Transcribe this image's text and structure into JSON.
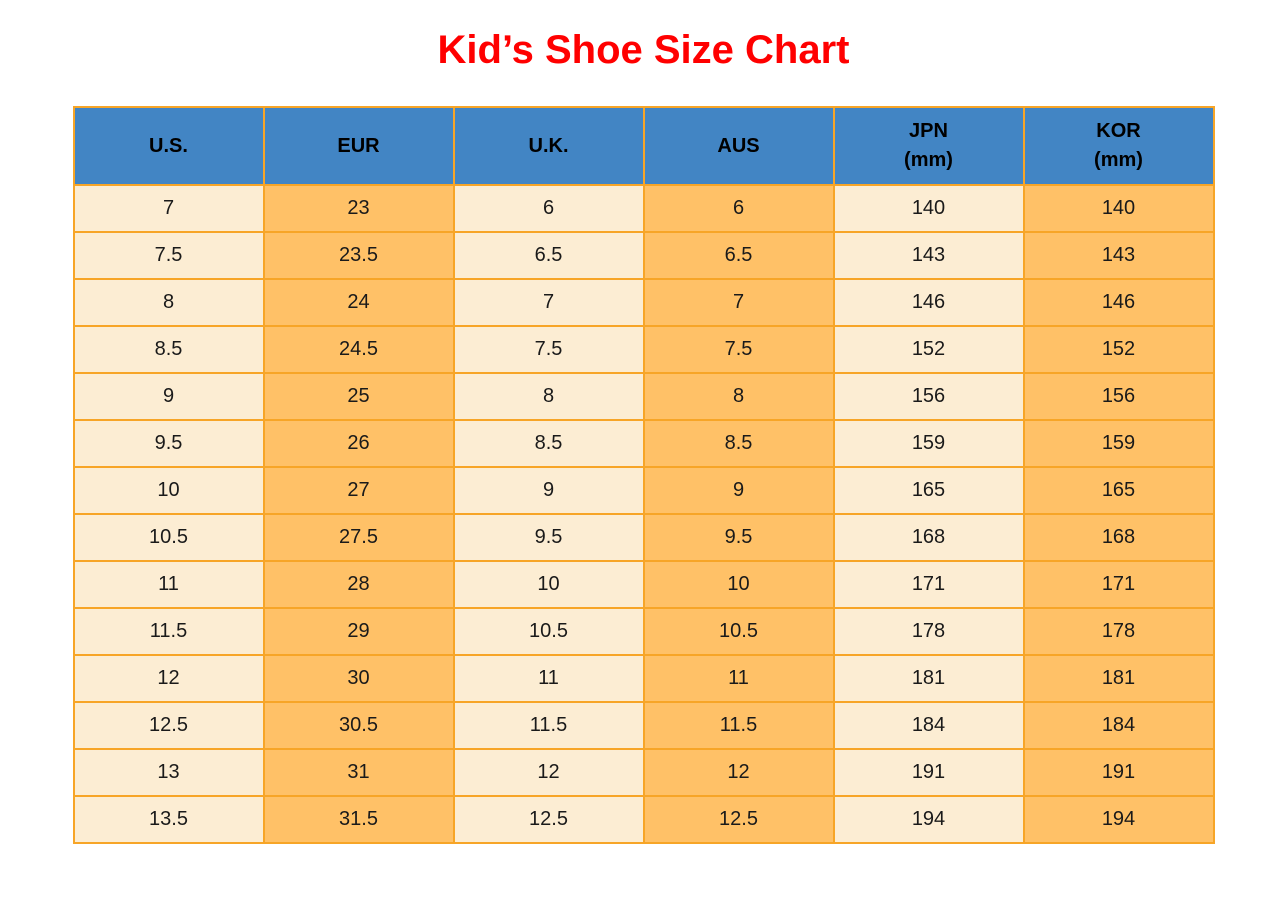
{
  "title": "Kid’s Shoe Size Chart",
  "colors": {
    "title": "#FF0000",
    "header_bg": "#4285C4",
    "col_cream": "#FCEDD3",
    "col_orange": "#FFC167",
    "border": "#F7A527",
    "header_text": "#000000",
    "cell_text": "#1A1A1A"
  },
  "chart_data": {
    "type": "table",
    "title": "Kid’s Shoe Size Chart",
    "columns": [
      {
        "label": "U.S.",
        "sublabel": ""
      },
      {
        "label": "EUR",
        "sublabel": ""
      },
      {
        "label": "U.K.",
        "sublabel": ""
      },
      {
        "label": "AUS",
        "sublabel": ""
      },
      {
        "label": "JPN",
        "sublabel": "(mm)"
      },
      {
        "label": "KOR",
        "sublabel": "(mm)"
      }
    ],
    "rows": [
      [
        "7",
        "23",
        "6",
        "6",
        "140",
        "140"
      ],
      [
        "7.5",
        "23.5",
        "6.5",
        "6.5",
        "143",
        "143"
      ],
      [
        "8",
        "24",
        "7",
        "7",
        "146",
        "146"
      ],
      [
        "8.5",
        "24.5",
        "7.5",
        "7.5",
        "152",
        "152"
      ],
      [
        "9",
        "25",
        "8",
        "8",
        "156",
        "156"
      ],
      [
        "9.5",
        "26",
        "8.5",
        "8.5",
        "159",
        "159"
      ],
      [
        "10",
        "27",
        "9",
        "9",
        "165",
        "165"
      ],
      [
        "10.5",
        "27.5",
        "9.5",
        "9.5",
        "168",
        "168"
      ],
      [
        "11",
        "28",
        "10",
        "10",
        "171",
        "171"
      ],
      [
        "11.5",
        "29",
        "10.5",
        "10.5",
        "178",
        "178"
      ],
      [
        "12",
        "30",
        "11",
        "11",
        "181",
        "181"
      ],
      [
        "12.5",
        "30.5",
        "11.5",
        "11.5",
        "184",
        "184"
      ],
      [
        "13",
        "31",
        "12",
        "12",
        "191",
        "191"
      ],
      [
        "13.5",
        "31.5",
        "12.5",
        "12.5",
        "194",
        "194"
      ]
    ],
    "layout": {
      "column_fill_pattern": [
        "cream",
        "orange",
        "cream",
        "orange",
        "cream",
        "orange"
      ],
      "grid": true,
      "legend": "none"
    }
  }
}
